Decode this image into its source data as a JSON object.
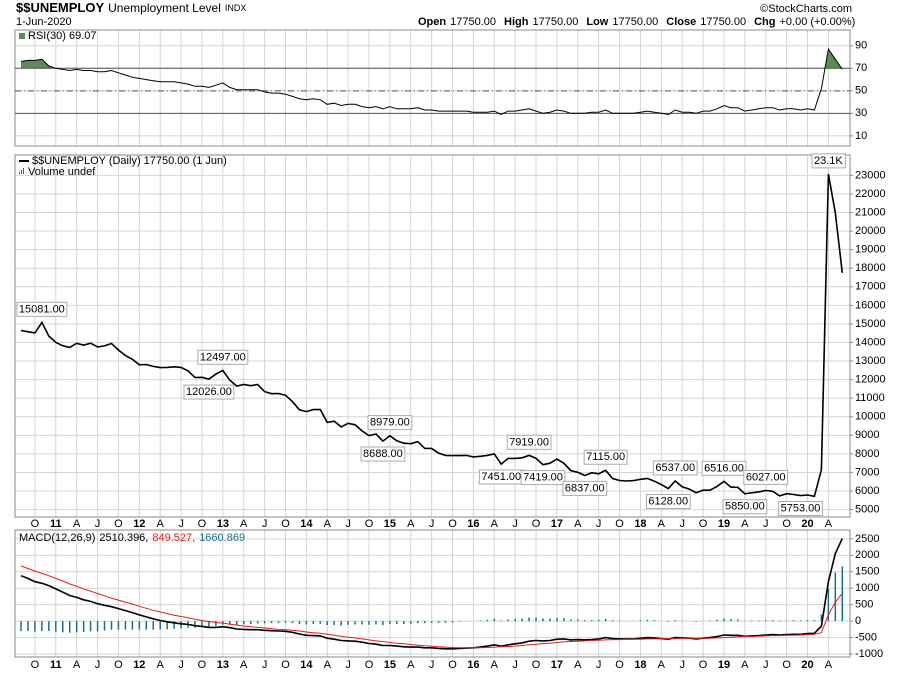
{
  "header": {
    "symbol": "$$UNEMPLOY",
    "name": "Unemployment Level",
    "exchange": "INDX",
    "date": "1-Jun-2020",
    "quote": [
      {
        "label": "Open",
        "value": "17750.00"
      },
      {
        "label": "High",
        "value": "17750.00"
      },
      {
        "label": "Low",
        "value": "17750.00"
      },
      {
        "label": "Close",
        "value": "17750.00"
      },
      {
        "label": "Chg",
        "value": "+0.00 (+0.00%)"
      }
    ],
    "credit": "©StockCharts.com"
  },
  "chart_data": [
    {
      "type": "line",
      "ylim": [
        1,
        104
      ],
      "yticks": [
        10,
        30,
        50,
        70,
        90
      ],
      "overbought": 70,
      "oversold": 30,
      "midline": 50,
      "fill_color": "#5d8a5d",
      "series": [
        {
          "name": "RSI(30) 69.07",
          "color": "#000000",
          "values": [
            76,
            77,
            77,
            78,
            72,
            70,
            69,
            68,
            69,
            68,
            68,
            67,
            67,
            68,
            66,
            64,
            62,
            61,
            60,
            59,
            58,
            58,
            58,
            57,
            56,
            54,
            54,
            53,
            55,
            57,
            53,
            51,
            51,
            51,
            51,
            49,
            48,
            48,
            47,
            45,
            43,
            42,
            43,
            42,
            38,
            39,
            37,
            38,
            38,
            36,
            35,
            36,
            34,
            36,
            34,
            34,
            34,
            35,
            33,
            33,
            32,
            32,
            32,
            32,
            32,
            31,
            31,
            31,
            32,
            29,
            32,
            32,
            33,
            34,
            32,
            30,
            31,
            33,
            32,
            30,
            30,
            30,
            31,
            31,
            33,
            30,
            30,
            30,
            30,
            31,
            32,
            31,
            30,
            29,
            33,
            31,
            31,
            30,
            32,
            32,
            34,
            37,
            35,
            35,
            32,
            33,
            34,
            35,
            35,
            33,
            34,
            34,
            33,
            34,
            33,
            52,
            87,
            78,
            69.07
          ]
        }
      ]
    },
    {
      "type": "line",
      "ylim": [
        4600,
        24100
      ],
      "yticks": [
        5000,
        6000,
        7000,
        8000,
        9000,
        10000,
        11000,
        12000,
        13000,
        14000,
        15000,
        16000,
        17000,
        18000,
        19000,
        20000,
        21000,
        22000,
        23000
      ],
      "grid": true,
      "note": "Volume undef",
      "categories": [
        null,
        null,
        "O",
        null,
        null,
        "11",
        null,
        null,
        "A",
        null,
        null,
        "J",
        null,
        null,
        "O",
        null,
        null,
        "12",
        null,
        null,
        "A",
        null,
        null,
        "J",
        null,
        null,
        "O",
        null,
        null,
        "13",
        null,
        null,
        "A",
        null,
        null,
        "J",
        null,
        null,
        "O",
        null,
        null,
        "14",
        null,
        null,
        "A",
        null,
        null,
        "J",
        null,
        null,
        "O",
        null,
        null,
        "15",
        null,
        null,
        "A",
        null,
        null,
        "J",
        null,
        null,
        "O",
        null,
        null,
        "16",
        null,
        null,
        "A",
        null,
        null,
        "J",
        null,
        null,
        "O",
        null,
        null,
        "17",
        null,
        null,
        "A",
        null,
        null,
        "J",
        null,
        null,
        "O",
        null,
        null,
        "18",
        null,
        null,
        "A",
        null,
        null,
        "J",
        null,
        null,
        "O",
        null,
        null,
        "19",
        null,
        null,
        "A",
        null,
        null,
        "J",
        null,
        null,
        "O",
        null,
        null,
        "20",
        null,
        null,
        "A",
        null,
        null
      ],
      "series": [
        {
          "name": "$$UNEMPLOY (Daily) 17750.00 (1 Jun)",
          "color": "#000000",
          "values": [
            14648,
            14579,
            14516,
            15081,
            14348,
            14013,
            13820,
            13737,
            13957,
            13855,
            13962,
            13763,
            13818,
            13948,
            13594,
            13302,
            13093,
            12797,
            12813,
            12713,
            12646,
            12660,
            12692,
            12656,
            12471,
            12115,
            12124,
            12026,
            12298,
            12497,
            11967,
            11653,
            11735,
            11671,
            11736,
            11357,
            11241,
            11251,
            11161,
            10814,
            10376,
            10280,
            10387,
            10384,
            9696,
            9761,
            9453,
            9648,
            9568,
            9237,
            8983,
            9071,
            8688,
            8979,
            8705,
            8575,
            8549,
            8660,
            8300,
            8297,
            8044,
            7918,
            7908,
            7909,
            7918,
            7838,
            7871,
            7919,
            7999,
            7451,
            7754,
            7757,
            7788,
            7919,
            7763,
            7419,
            7497,
            7717,
            7493,
            7098,
            7009,
            6837,
            6986,
            6929,
            7115,
            6672,
            6566,
            6541,
            6559,
            6633,
            6680,
            6527,
            6351,
            6128,
            6537,
            6227,
            6102,
            5911,
            6042,
            6045,
            6251,
            6516,
            6210,
            6195,
            5850,
            5903,
            5951,
            6027,
            5987,
            5739,
            5855,
            5812,
            5753,
            5787,
            5717,
            7140,
            23078,
            20985,
            17750
          ],
          "value_labels": [
            null,
            null,
            null,
            "15081.00",
            null,
            null,
            null,
            null,
            null,
            null,
            null,
            null,
            null,
            null,
            null,
            null,
            null,
            null,
            null,
            null,
            null,
            null,
            null,
            null,
            null,
            null,
            null,
            "12026.00",
            null,
            "12497.00",
            null,
            null,
            null,
            null,
            null,
            null,
            null,
            null,
            null,
            null,
            null,
            null,
            null,
            null,
            null,
            null,
            null,
            null,
            null,
            null,
            null,
            null,
            "8688.00",
            "8979.00",
            null,
            null,
            null,
            null,
            null,
            null,
            null,
            null,
            null,
            null,
            null,
            null,
            null,
            null,
            null,
            "7451.00",
            null,
            null,
            null,
            "7919.00",
            null,
            "7419.00",
            null,
            null,
            null,
            null,
            null,
            "6837.00",
            null,
            null,
            "7115.00",
            null,
            null,
            null,
            null,
            null,
            null,
            null,
            null,
            "6128.00",
            "6537.00",
            null,
            null,
            null,
            null,
            null,
            null,
            "6516.00",
            null,
            null,
            "5850.00",
            null,
            null,
            "6027.00",
            null,
            null,
            null,
            null,
            "5753.00",
            null,
            null,
            null,
            "23.1K",
            null,
            null
          ]
        }
      ]
    },
    {
      "type": "line",
      "title": "MACD(12,26,9)",
      "ylim": [
        -1090,
        2770
      ],
      "yticks": [
        -1000,
        -500,
        0,
        500,
        1000,
        1500,
        2000,
        2500
      ],
      "series": [
        {
          "name": "2510.396,",
          "color": "#000000",
          "values": [
            1380,
            1300,
            1200,
            1150,
            1080,
            980,
            880,
            780,
            720,
            650,
            600,
            530,
            480,
            440,
            380,
            320,
            260,
            190,
            130,
            70,
            20,
            -20,
            -50,
            -80,
            -100,
            -140,
            -160,
            -190,
            -190,
            -170,
            -200,
            -240,
            -250,
            -260,
            -260,
            -280,
            -290,
            -300,
            -310,
            -340,
            -390,
            -430,
            -440,
            -450,
            -520,
            -550,
            -590,
            -600,
            -610,
            -640,
            -680,
            -700,
            -740,
            -740,
            -760,
            -780,
            -790,
            -790,
            -810,
            -810,
            -830,
            -840,
            -840,
            -830,
            -820,
            -810,
            -790,
            -760,
            -720,
            -760,
            -720,
            -690,
            -660,
            -610,
            -590,
            -600,
            -590,
            -550,
            -540,
            -570,
            -560,
            -570,
            -560,
            -540,
            -500,
            -530,
            -540,
            -540,
            -540,
            -520,
            -500,
            -510,
            -530,
            -550,
            -500,
            -510,
            -520,
            -540,
            -520,
            -500,
            -470,
            -420,
            -430,
            -430,
            -460,
            -450,
            -440,
            -420,
            -410,
            -420,
            -410,
            -400,
            -400,
            -380,
            -370,
            -150,
            1200,
            2050,
            2510.396
          ]
        },
        {
          "name": "849.527,",
          "color": "#e0201b",
          "values": [
            1680,
            1600,
            1520,
            1450,
            1380,
            1300,
            1220,
            1130,
            1060,
            980,
            910,
            840,
            770,
            700,
            640,
            580,
            520,
            450,
            390,
            330,
            280,
            230,
            180,
            140,
            100,
            60,
            20,
            -10,
            -40,
            -60,
            -90,
            -120,
            -150,
            -170,
            -190,
            -210,
            -230,
            -250,
            -260,
            -280,
            -300,
            -330,
            -350,
            -370,
            -400,
            -430,
            -460,
            -490,
            -510,
            -540,
            -570,
            -600,
            -620,
            -650,
            -670,
            -690,
            -710,
            -730,
            -750,
            -760,
            -780,
            -790,
            -800,
            -810,
            -810,
            -810,
            -810,
            -800,
            -790,
            -780,
            -770,
            -760,
            -740,
            -720,
            -700,
            -680,
            -670,
            -650,
            -630,
            -620,
            -610,
            -600,
            -590,
            -580,
            -570,
            -560,
            -560,
            -550,
            -550,
            -550,
            -540,
            -540,
            -530,
            -530,
            -530,
            -520,
            -520,
            -520,
            -520,
            -520,
            -510,
            -500,
            -490,
            -480,
            -470,
            -470,
            -460,
            -450,
            -440,
            -440,
            -430,
            -430,
            -420,
            -410,
            -400,
            -350,
            200,
            570,
            849.527
          ]
        },
        {
          "name": "1660.869",
          "color": "#1b6f8f",
          "type": "bar",
          "values": [
            -300,
            -300,
            -320,
            -300,
            -300,
            -320,
            -340,
            -350,
            -340,
            -330,
            -310,
            -310,
            -290,
            -260,
            -260,
            -260,
            -260,
            -260,
            -260,
            -260,
            -260,
            -250,
            -230,
            -220,
            -200,
            -200,
            -180,
            -180,
            -150,
            -110,
            -110,
            -120,
            -100,
            -90,
            -70,
            -70,
            -60,
            -50,
            -50,
            -60,
            -90,
            -100,
            -90,
            -80,
            -120,
            -120,
            -130,
            -110,
            -100,
            -100,
            -110,
            -100,
            -120,
            -90,
            -90,
            -90,
            -80,
            -60,
            -60,
            -50,
            -50,
            -50,
            -40,
            -20,
            -10,
            0,
            20,
            40,
            70,
            20,
            50,
            70,
            80,
            110,
            110,
            80,
            80,
            100,
            90,
            50,
            50,
            30,
            30,
            40,
            70,
            30,
            20,
            10,
            10,
            30,
            40,
            30,
            0,
            -20,
            30,
            10,
            0,
            -20,
            0,
            20,
            40,
            80,
            60,
            50,
            10,
            20,
            20,
            30,
            30,
            20,
            20,
            30,
            20,
            30,
            30,
            200,
            1000,
            1480,
            1660.869
          ]
        }
      ]
    }
  ]
}
